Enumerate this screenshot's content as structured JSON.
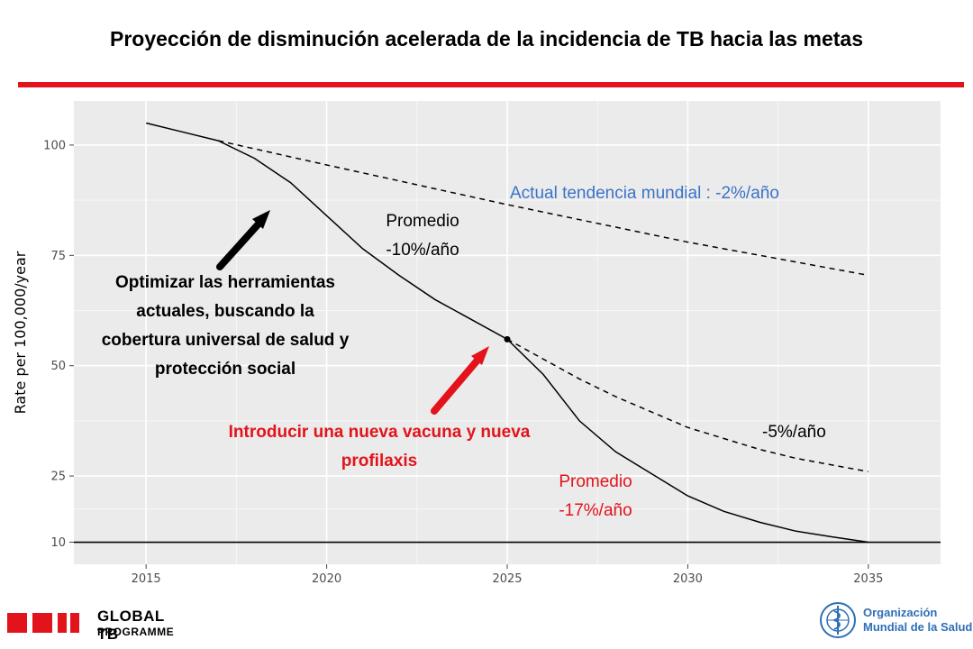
{
  "slide": {
    "title": "Proyección de disminución acelerada de la incidencia de TB  hacia las metas"
  },
  "chart_data": {
    "type": "line",
    "ylabel": "Rate per 100,000/year",
    "xlabel": "",
    "x_ticks": [
      2015,
      2020,
      2025,
      2030,
      2035
    ],
    "y_ticks": [
      10,
      25,
      50,
      75,
      100
    ],
    "xlim": [
      2013,
      2037
    ],
    "ylim": [
      5,
      110
    ],
    "grid": true,
    "background": "#ebebeb",
    "series": [
      {
        "style": "solid",
        "color": "#000000",
        "x": [
          2015,
          2016,
          2017,
          2018,
          2019,
          2020,
          2021,
          2022,
          2023,
          2024,
          2025,
          2026,
          2027,
          2028,
          2029,
          2030,
          2031,
          2032,
          2033,
          2034,
          2035
        ],
        "y": [
          105,
          103,
          101,
          97,
          91.5,
          84,
          76.5,
          70.5,
          65,
          60.5,
          56,
          48,
          37.5,
          30.5,
          25.5,
          20.5,
          17,
          14.5,
          12.5,
          11.2,
          10
        ]
      },
      {
        "style": "dashed",
        "color": "#000000",
        "x": [
          2017,
          2020,
          2025,
          2030,
          2035
        ],
        "y": [
          101,
          95.5,
          86.5,
          78,
          70.5
        ]
      },
      {
        "style": "dashed",
        "color": "#000000",
        "x": [
          2025,
          2026,
          2027,
          2028,
          2029,
          2030,
          2031,
          2032,
          2033,
          2034,
          2035
        ],
        "y": [
          56,
          51.5,
          47,
          43,
          39.5,
          36,
          33.5,
          31,
          29,
          27.5,
          26
        ]
      }
    ],
    "reference_line": {
      "y": 10,
      "color": "#000000"
    },
    "highlight_point": {
      "x": 2025,
      "y": 56
    }
  },
  "annotations": {
    "trend_label": "Actual tendencia mundial : -2%/año",
    "avg10_line1": "Promedio",
    "avg10_line2": "-10%/año",
    "five_pct": "-5%/año",
    "avg17_line1": "Promedio",
    "avg17_line2": "-17%/año",
    "optimize_lines": [
      "Optimizar las herramientas",
      "actuales, buscando  la",
      "cobertura universal de salud y",
      "protección social"
    ],
    "vaccine_lines": [
      "Introducir una nueva vacuna y nueva",
      "profilaxis"
    ]
  },
  "colors": {
    "accent_red": "#e3131b",
    "trend_blue": "#3a73c7",
    "who_blue": "#2e6fb6"
  },
  "footer": {
    "program_line1": "GLOBAL TB",
    "program_line2": "PROGRAMME",
    "org_line1": "Organización",
    "org_line2": "Mundial de la Salud"
  }
}
